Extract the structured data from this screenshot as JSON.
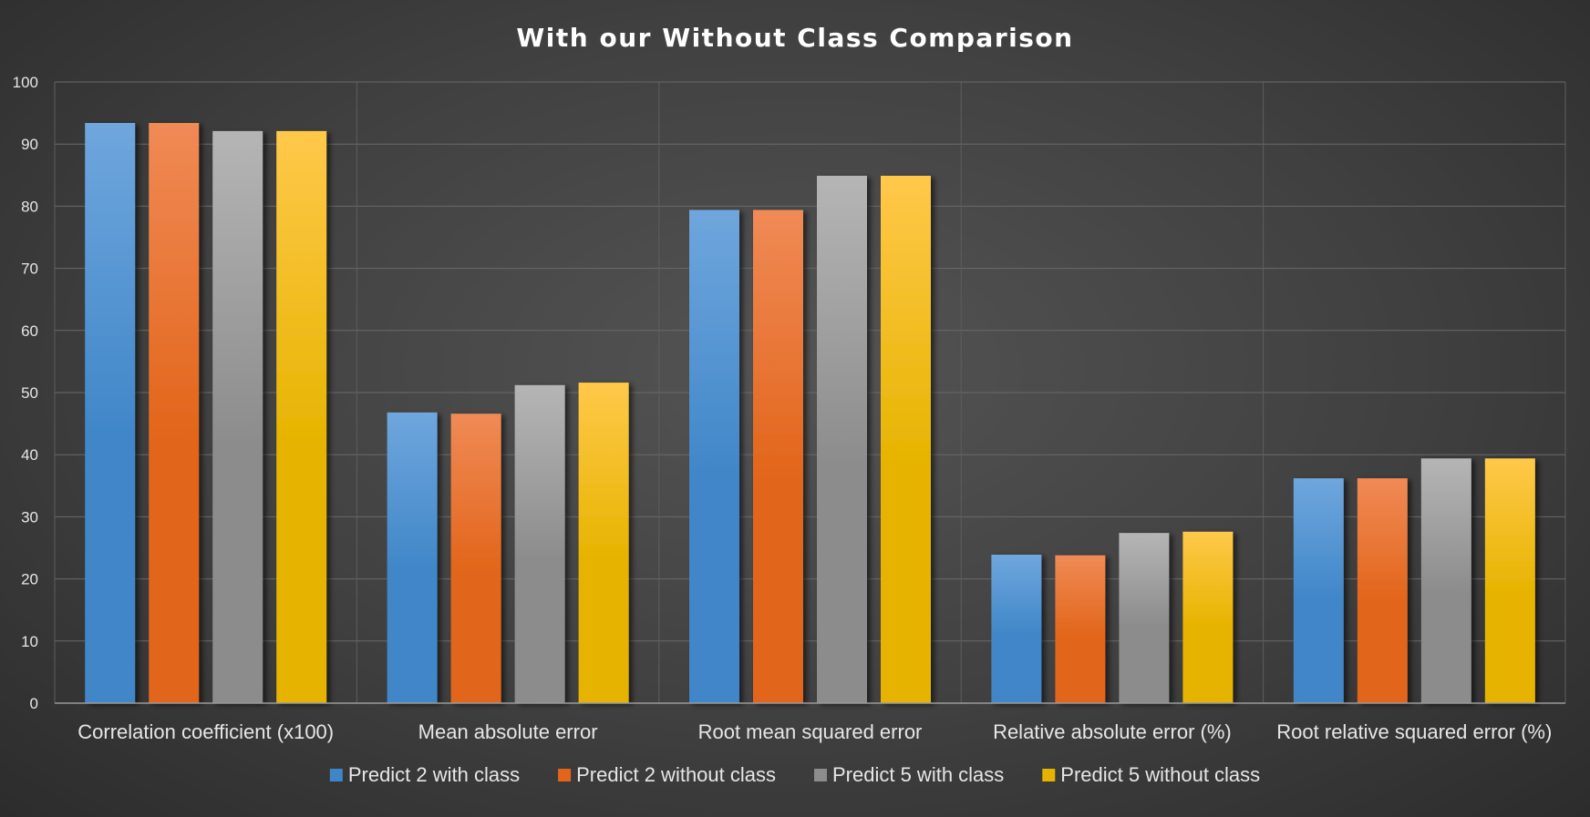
{
  "chart_data": {
    "type": "bar",
    "title": "With our Without Class Comparison",
    "xlabel": "",
    "ylabel": "",
    "ylim": [
      0,
      100
    ],
    "yticks": [
      0,
      10,
      20,
      30,
      40,
      50,
      60,
      70,
      80,
      90,
      100
    ],
    "grid": true,
    "legend_position": "bottom",
    "categories": [
      "Correlation coefficient (x100)",
      "Mean absolute error",
      "Root mean squared error",
      "Relative absolute error (%)",
      "Root relative squared error (%)"
    ],
    "series": [
      {
        "name": "Predict 2 with class",
        "color_top": "#6fa6dd",
        "color_bottom": "#3f86c8",
        "values": [
          93.4,
          46.8,
          79.4,
          23.9,
          36.2
        ]
      },
      {
        "name": "Predict 2 without class",
        "color_top": "#f08a56",
        "color_bottom": "#e2651a",
        "values": [
          93.4,
          46.6,
          79.4,
          23.8,
          36.2
        ]
      },
      {
        "name": "Predict 5 with class",
        "color_top": "#b5b5b5",
        "color_bottom": "#8c8c8c",
        "values": [
          92.1,
          51.2,
          84.9,
          27.4,
          39.4
        ]
      },
      {
        "name": "Predict 5 without class",
        "color_top": "#ffc84a",
        "color_bottom": "#e6b400",
        "values": [
          92.1,
          51.6,
          84.9,
          27.6,
          39.4
        ]
      }
    ]
  }
}
